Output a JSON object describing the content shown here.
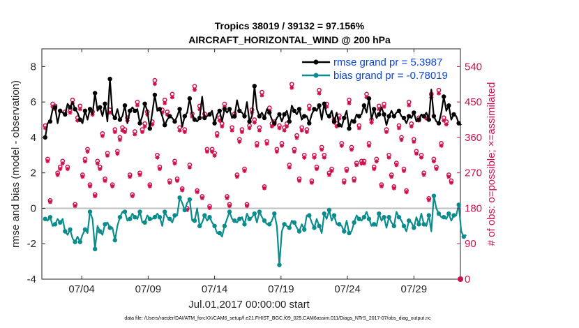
{
  "chart_data": {
    "type": "line",
    "title_line1": "Tropics 38019 / 39132 = 97.156%",
    "title_line2": "AIRCRAFT_HORIZONTAL_WIND @ 200 hPa",
    "ylabel": "rmse and bias (model - observation)",
    "ylabel_right": "# of obs: o=possible; ×=assimilated",
    "xlabel": "Jul.01,2017 00:00:00 start",
    "footer": "data file: /Users/raeder/DAI/ATM_forcXX/CAM6_setup/f.e21.FHIST_BGC.f09_025.CAM6assim.011/Diags_NTrS_2017-07/obs_diag_output.nc",
    "ylim": [
      -4,
      9
    ],
    "yticks": [
      "-4",
      "-2",
      "0",
      "2",
      "4",
      "6",
      "8"
    ],
    "ylim_right": [
      0,
      585
    ],
    "yticks_right": [
      "0",
      "90",
      "180",
      "270",
      "360",
      "450",
      "540"
    ],
    "xlim": [
      1,
      32.5
    ],
    "xtick_labels": [
      "07/04",
      "07/09",
      "07/14",
      "07/19",
      "07/24",
      "07/29"
    ],
    "xtick_days": [
      4,
      9,
      14,
      19,
      24,
      29
    ],
    "colors": {
      "rmse": "#000000",
      "bias": "#0a8c8c",
      "obs": "#d0104c",
      "legend_text": "#0b45d6"
    },
    "series": [
      {
        "name": "rmse grand pr = 5.3987",
        "axis": "left",
        "values": [
          4.0,
          4.8,
          4.9,
          5.6,
          5.7,
          4.8,
          5.5,
          5.4,
          5.3,
          5.9,
          5.7,
          6.0,
          5.6,
          5.4,
          5.0,
          4.8,
          5.5,
          5.0,
          5.6,
          5.3,
          6.5,
          5.5,
          5.7,
          5.2,
          5.9,
          4.9,
          7.3,
          5.3,
          5.1,
          5.6,
          5.0,
          5.2,
          5.8,
          4.8,
          5.5,
          5.7,
          5.5,
          5.6,
          4.8,
          5.2,
          5.9,
          5.5,
          4.5,
          5.4,
          6.4,
          5.5,
          5.6,
          5.2,
          4.7,
          5.0,
          5.2,
          5.1,
          4.9,
          5.2,
          5.6,
          4.6,
          5.2,
          5.4,
          6.2,
          5.3,
          5.0,
          4.9,
          5.1,
          6.3,
          5.1,
          5.2,
          5.3,
          5.5,
          4.8,
          5.3,
          5.5,
          4.9,
          5.6,
          5.4,
          5.6,
          5.1,
          5.2,
          6.1,
          5.5,
          5.4,
          5.2,
          6.0,
          4.9,
          5.2,
          6.9,
          5.6,
          5.2,
          5.4,
          5.1,
          5.6,
          5.4,
          5.0,
          4.8,
          5.1,
          5.3,
          4.9,
          5.3,
          5.5,
          4.9,
          5.8,
          5.5,
          5.3,
          5.6,
          5.0,
          5.2,
          5.2,
          4.8,
          5.3,
          5.6,
          5.5,
          5.8,
          5.0,
          5.9,
          5.3,
          5.2,
          5.5,
          4.9,
          5.4,
          4.7,
          4.6,
          5.1,
          5.5,
          4.5,
          5.0,
          4.9,
          5.3,
          5.2,
          5.3,
          5.8,
          5.4,
          6.2,
          5.0,
          5.6,
          5.1,
          5.3,
          5.7,
          5.3,
          4.7,
          5.2,
          5.5,
          5.2,
          5.4,
          5.5,
          5.2,
          5.1,
          4.8,
          5.2,
          5.1,
          5.4,
          4.9,
          5.0,
          5.3,
          5.2,
          5.4,
          5.0,
          6.7,
          5.2,
          4.9,
          4.8,
          5.4,
          6.3,
          5.5,
          5.8,
          5.0,
          5.3,
          5.2,
          4.8,
          4.7
        ],
        "markers_every": 2
      },
      {
        "name": "bias grand pr = -0.78019",
        "axis": "left",
        "values": [
          -0.6,
          -0.7,
          -0.5,
          -1.0,
          -0.9,
          -0.6,
          -0.8,
          -0.6,
          -1.3,
          -1.5,
          -1.2,
          -1.7,
          -1.9,
          -1.6,
          -1.9,
          -1.5,
          -1.2,
          -1.4,
          -0.2,
          -0.6,
          -2.3,
          -1.0,
          -1.3,
          -1.5,
          -0.9,
          -0.8,
          -1.1,
          -1.1,
          -1.8,
          -1.0,
          -0.5,
          -0.2,
          -0.2,
          -0.7,
          -0.6,
          -0.3,
          -0.5,
          -0.6,
          -0.2,
          -0.8,
          -0.8,
          -0.4,
          -0.6,
          -0.6,
          -0.5,
          -0.3,
          -0.5,
          -1.0,
          -0.2,
          -0.5,
          -0.6,
          -0.8,
          -0.4,
          -0.4,
          0.6,
          0.3,
          -0.1,
          0.3,
          0.5,
          -0.7,
          -0.7,
          0.0,
          -1.0,
          -0.8,
          -0.4,
          -0.7,
          -0.5,
          -0.8,
          -1.0,
          -1.4,
          -1.4,
          -1.6,
          -1.0,
          -0.6,
          -0.2,
          -0.6,
          -0.7,
          -0.8,
          -0.6,
          -0.5,
          -0.9,
          -0.3,
          -0.6,
          -0.5,
          -0.3,
          -0.8,
          -0.2,
          -0.5,
          -0.7,
          -0.9,
          -0.9,
          -0.7,
          -0.3,
          -1.0,
          -3.2,
          -1.3,
          -0.9,
          -1.0,
          -1.1,
          -0.7,
          -0.8,
          -1.1,
          -1.3,
          -0.9,
          -1.2,
          -0.4,
          -0.4,
          -0.8,
          -1.1,
          -0.6,
          -1.0,
          -1.4,
          -0.3,
          -0.6,
          -0.1,
          -0.7,
          -0.4,
          -0.9,
          -0.9,
          -1.0,
          -1.3,
          -0.7,
          -1.4,
          -1.3,
          -0.8,
          -0.4,
          -0.6,
          -0.7,
          -0.5,
          -0.2,
          -0.6,
          -1.0,
          -0.9,
          -1.0,
          -0.3,
          -0.7,
          -0.5,
          -1.1,
          -0.5,
          -0.8,
          -1.0,
          -0.2,
          -0.5,
          -0.7,
          -1.0,
          -1.3,
          -0.7,
          -0.8,
          -1.1,
          -0.5,
          -0.9,
          -0.3,
          -0.9,
          -1.0,
          -0.4,
          -1.3,
          0.7,
          0.0,
          -0.3,
          -0.5,
          -0.5,
          -0.6,
          -0.3,
          -0.7,
          -0.4,
          -0.4,
          0.2,
          -1.3,
          -1.6,
          -1.5
        ],
        "markers_every": 2
      },
      {
        "name": "obs possible (o)",
        "axis": "right",
        "values": [
          390,
          305,
          200,
          445,
          440,
          270,
          285,
          300,
          425,
          285,
          430,
          455,
          190,
          410,
          440,
          265,
          305,
          330,
          240,
          425,
          215,
          300,
          285,
          370,
          255,
          320,
          430,
          240,
          380,
          325,
          360,
          385,
          380,
          410,
          265,
          215,
          375,
          450,
          270,
          380,
          395,
          425,
          240,
          400,
          505,
          315,
          285,
          430,
          455,
          425,
          250,
          470,
          300,
          255,
          385,
          230,
          380,
          180,
          290,
          420,
          490,
          225,
          440,
          210,
          420,
          330,
          185,
          330,
          320,
          370,
          410,
          395,
          445,
          210,
          190,
          385,
          420,
          265,
          355,
          380,
          280,
          190,
          390,
          430,
          405,
          345,
          385,
          475,
          235,
          350,
          435,
          395,
          400,
          330,
          390,
          345,
          385,
          395,
          290,
          495,
          330,
          365,
          255,
          385,
          315,
          380,
          440,
          250,
          315,
          285,
          480,
          335,
          315,
          445,
          270,
          280,
          405,
          395,
          415,
          345,
          250,
          280,
          455,
          335,
          255,
          295,
          390,
          300,
          300,
          470,
          345,
          405,
          285,
          305,
          440,
          240,
          445,
          380,
          315,
          265,
          235,
          295,
          390,
          360,
          280,
          225,
          450,
          395,
          355,
          325,
          410,
          315,
          270,
          415,
          205,
          470,
          305,
          285,
          480,
          345,
          410,
          400,
          265,
          250
        ],
        "markers_every": 1
      },
      {
        "name": "obs assimilated (×)",
        "axis": "right",
        "values": [
          384,
          300,
          196,
          438,
          432,
          265,
          280,
          294,
          418,
          280,
          423,
          447,
          186,
          403,
          432,
          260,
          299,
          324,
          236,
          418,
          211,
          294,
          280,
          364,
          250,
          314,
          423,
          236,
          374,
          319,
          354,
          378,
          374,
          403,
          260,
          211,
          368,
          442,
          265,
          374,
          388,
          418,
          236,
          393,
          496,
          309,
          280,
          423,
          447,
          418,
          245,
          462,
          294,
          250,
          378,
          226,
          374,
          176,
          284,
          413,
          481,
          221,
          432,
          206,
          413,
          324,
          181,
          324,
          314,
          364,
          403,
          388,
          438,
          206,
          186,
          378,
          413,
          260,
          349,
          374,
          275,
          186,
          384,
          423,
          398,
          339,
          378,
          467,
          231,
          344,
          428,
          388,
          393,
          324,
          384,
          339,
          378,
          388,
          284,
          486,
          324,
          359,
          250,
          378,
          309,
          374,
          432,
          245,
          309,
          280,
          472,
          329,
          309,
          438,
          265,
          275,
          398,
          388,
          408,
          339,
          245,
          275,
          447,
          329,
          250,
          290,
          384,
          294,
          294,
          462,
          339,
          398,
          280,
          299,
          432,
          236,
          438,
          374,
          309,
          260,
          231,
          290,
          384,
          354,
          275,
          221,
          442,
          388,
          349,
          319,
          403,
          309,
          265,
          408,
          201,
          462,
          299,
          280,
          472,
          339,
          403,
          393,
          260,
          245
        ],
        "markers_every": 1
      }
    ]
  }
}
